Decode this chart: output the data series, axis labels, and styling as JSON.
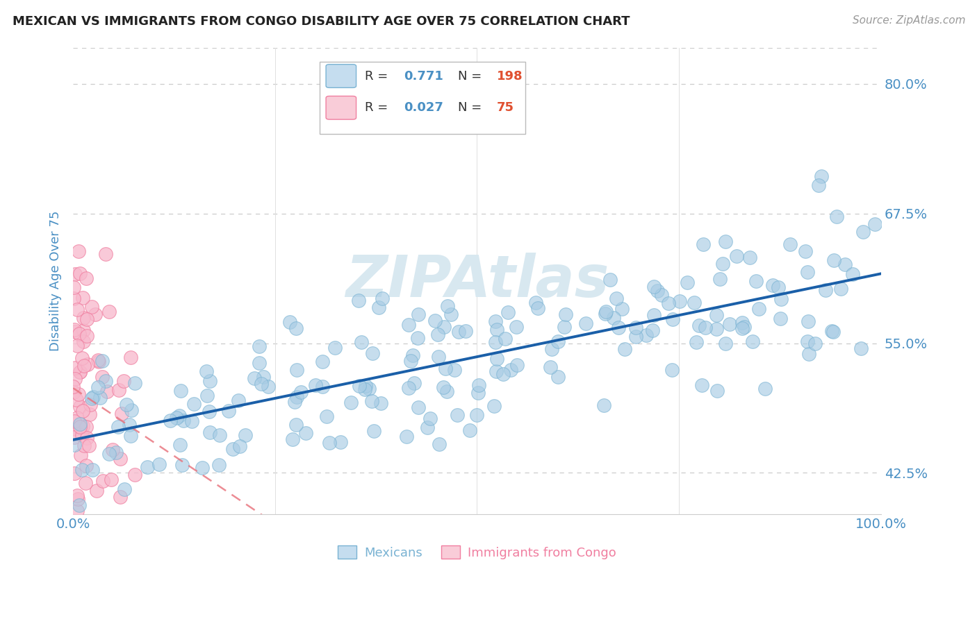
{
  "title": "MEXICAN VS IMMIGRANTS FROM CONGO DISABILITY AGE OVER 75 CORRELATION CHART",
  "source": "Source: ZipAtlas.com",
  "ylabel": "Disability Age Over 75",
  "xlim": [
    0.0,
    1.0
  ],
  "ylim": [
    0.385,
    0.835
  ],
  "ytick_positions": [
    0.425,
    0.55,
    0.675,
    0.8
  ],
  "ytick_labels": [
    "42.5%",
    "55.0%",
    "67.5%",
    "80.0%"
  ],
  "xtick_positions": [
    0.0,
    0.25,
    0.5,
    0.75,
    1.0
  ],
  "xtick_labels": [
    "0.0%",
    "",
    "",
    "",
    "100.0%"
  ],
  "mexican_R": 0.771,
  "mexican_N": 198,
  "congo_R": 0.027,
  "congo_N": 75,
  "mexican_dot_color": "#a8cce4",
  "mexican_dot_edge": "#7ab3d3",
  "congo_dot_color": "#f7b8cc",
  "congo_dot_edge": "#f07fa0",
  "trend_mexican_color": "#1a5fa8",
  "trend_congo_color": "#e8707a",
  "grid_color": "#cccccc",
  "axis_label_color": "#4a90c4",
  "watermark_text": "ZIPAtlas",
  "watermark_color": "#d8e8f0",
  "legend_box_mexican_fill": "#c5ddef",
  "legend_box_mexican_edge": "#7ab3d3",
  "legend_box_congo_fill": "#f9ccd8",
  "legend_box_congo_edge": "#f07fa0",
  "legend_text_color": "#333333",
  "legend_value_color": "#4a90c4",
  "legend_n_color": "#e05030",
  "bottom_legend_mexican_color": "#7ab3d3",
  "bottom_legend_congo_color": "#f07fa0"
}
